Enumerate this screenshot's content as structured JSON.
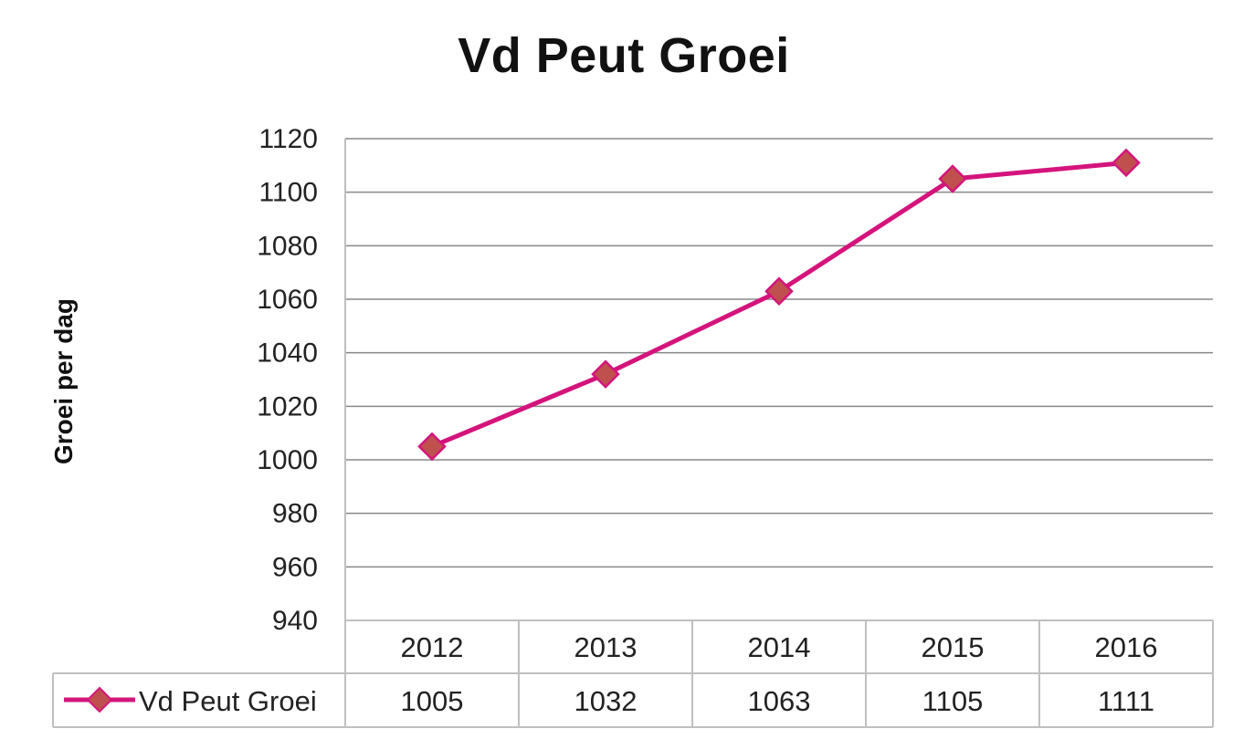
{
  "chart_data": {
    "type": "line",
    "title": "Vd Peut Groei",
    "xlabel": "",
    "ylabel": "Groei per dag",
    "categories": [
      "2012",
      "2013",
      "2014",
      "2015",
      "2016"
    ],
    "series": [
      {
        "name": "Vd Peut Groei",
        "values": [
          1005,
          1032,
          1063,
          1105,
          1111
        ]
      }
    ],
    "ylim": [
      940,
      1120
    ],
    "yticks": [
      940,
      960,
      980,
      1000,
      1020,
      1040,
      1060,
      1080,
      1100,
      1120
    ],
    "grid": true,
    "legend": "data-table",
    "data_table": true,
    "colors": {
      "line": "#d4147c",
      "marker": "#c0504d",
      "grid": "#888888",
      "table_border": "#bfbfbf"
    }
  }
}
